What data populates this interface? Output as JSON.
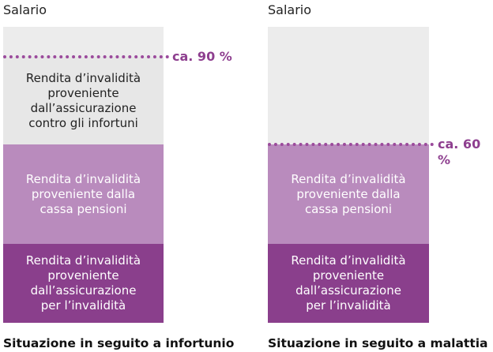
{
  "colors": {
    "salary_bg": "#ececec",
    "accident_insurance": "#e7e7e7",
    "pension_fund": "#b98bbd",
    "disability_insurance": "#8a3f8c",
    "dotted_line": "#9b4b9c"
  },
  "left": {
    "top_label": "Salario",
    "accident_text": "Rendita d’invalidità\nproveniente\ndall’assicurazione\ncontro gli infortuni",
    "pension_text": "Rendita d’invalidità\nproveniente dalla\ncassa pensioni",
    "ai_text": "Rendita d’invalidità\nproveniente\ndall’assicurazione\nper l’invalidità",
    "threshold_label": "ca. 90 %",
    "caption": "Situazione in seguito a infortunio"
  },
  "right": {
    "top_label": "Salario",
    "pension_text": "Rendita d’invalidità\nproveniente dalla\ncassa pensioni",
    "ai_text": "Rendita d’invalidità\nproveniente\ndall’assicurazione\nper l’invalidità",
    "threshold_label": "ca. 60 %",
    "caption": "Situazione in seguito a malattia"
  }
}
